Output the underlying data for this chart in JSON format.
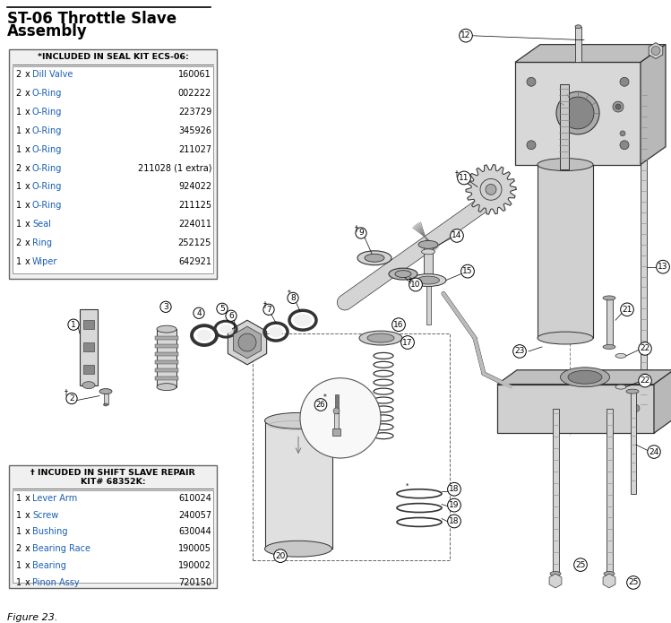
{
  "title_line1": "ST-06 Throttle Slave",
  "title_line2": "Assembly",
  "figure_label": "Figure 23.",
  "seal_kit_header": "*INCLUDED IN SEAL KIT ECS-06:",
  "seal_kit_items": [
    {
      "qty": "2",
      "x": "x",
      "type": "Dill Valve",
      "part": "160061"
    },
    {
      "qty": "2",
      "x": "x",
      "type": "O-Ring",
      "part": "002222"
    },
    {
      "qty": "1",
      "x": "x",
      "type": "O-Ring",
      "part": "223729"
    },
    {
      "qty": "1",
      "x": "x",
      "type": "O-Ring",
      "part": "345926"
    },
    {
      "qty": "1",
      "x": "x",
      "type": "O-Ring",
      "part": "211027"
    },
    {
      "qty": "2",
      "x": "x",
      "type": "O-Ring",
      "part": "211028 (1 extra)"
    },
    {
      "qty": "1",
      "x": "x",
      "type": "O-Ring",
      "part": "924022"
    },
    {
      "qty": "1",
      "x": "x",
      "type": "O-Ring",
      "part": "211125"
    },
    {
      "qty": "1",
      "x": "x",
      "type": "Seal",
      "part": "224011"
    },
    {
      "qty": "2",
      "x": "x",
      "type": "Ring",
      "part": "252125"
    },
    {
      "qty": "1",
      "x": "x",
      "type": "Wiper",
      "part": "642921"
    }
  ],
  "shift_kit_header_line1": "† INCUDED IN SHIFT SLAVE REPAIR",
  "shift_kit_header_line2": "KIT# 68352K:",
  "shift_kit_items": [
    {
      "qty": "1",
      "x": "x",
      "type": "Lever Arm",
      "part": "610024"
    },
    {
      "qty": "1",
      "x": "x",
      "type": "Screw",
      "part": "240057"
    },
    {
      "qty": "1",
      "x": "x",
      "type": "Bushing",
      "part": "630044"
    },
    {
      "qty": "2",
      "x": "x",
      "type": "Bearing Race",
      "part": "190005"
    },
    {
      "qty": "1",
      "x": "x",
      "type": "Bearing",
      "part": "190002"
    },
    {
      "qty": "1",
      "x": "x",
      "type": "Pinon Assy",
      "part": "720150"
    }
  ],
  "type_color": "#1a5fb4",
  "bg_color": "#ffffff",
  "text_color": "#000000",
  "outline_color": "#333333",
  "metal_light": "#d4d4d4",
  "metal_mid": "#aaaaaa",
  "metal_dark": "#777777",
  "metal_darker": "#555555"
}
